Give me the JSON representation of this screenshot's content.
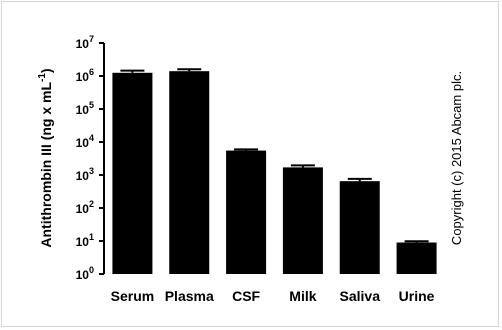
{
  "chart_data": {
    "type": "bar",
    "title": "",
    "xlabel": "",
    "ylabel": "Antithrombin III (ng x mL",
    "ylabel_exponent": "-1",
    "ylabel_suffix": ")",
    "yscale": "log",
    "ylim": [
      1,
      10000000
    ],
    "y_ticks": [
      {
        "base": "10",
        "exp": "0",
        "value": 1
      },
      {
        "base": "10",
        "exp": "1",
        "value": 10
      },
      {
        "base": "10",
        "exp": "2",
        "value": 100
      },
      {
        "base": "10",
        "exp": "3",
        "value": 1000
      },
      {
        "base": "10",
        "exp": "4",
        "value": 10000
      },
      {
        "base": "10",
        "exp": "5",
        "value": 100000
      },
      {
        "base": "10",
        "exp": "6",
        "value": 1000000
      },
      {
        "base": "10",
        "exp": "7",
        "value": 10000000
      }
    ],
    "categories": [
      "Serum",
      "Plasma",
      "CSF",
      "Milk",
      "Saliva",
      "Urine"
    ],
    "values": [
      1250000,
      1400000,
      5500,
      1700,
      650,
      9
    ],
    "error_upper": [
      1450000,
      1600000,
      6000,
      1950,
      760,
      9.8
    ],
    "bar_color": "#000000",
    "grid": false,
    "annotation": "Copyright (c) 2015 Abcam plc."
  }
}
